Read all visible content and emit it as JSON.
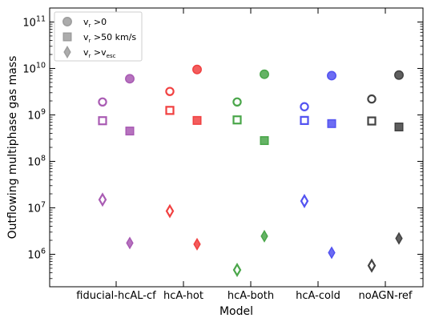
{
  "chart_data": {
    "type": "scatter",
    "title": "",
    "xlabel": "Model",
    "ylabel": "Outflowing multiphase gas mass",
    "yscale": "log",
    "ylim": [
      200000,
      200000000000
    ],
    "ytick_labels": [
      "10^6",
      "10^7",
      "10^8",
      "10^9",
      "10^10",
      "10^11"
    ],
    "ytick_values": [
      1000000,
      10000000,
      100000000,
      1000000000,
      10000000000,
      100000000000
    ],
    "categories": [
      "fiducial-hcAL-cf",
      "hcA-hot",
      "hcA-both",
      "hcA-cold",
      "noAGN-ref"
    ],
    "category_colors": [
      "#9a3ea6",
      "#ee2020",
      "#2a972a",
      "#3434ee",
      "#222222"
    ],
    "grid": false,
    "legend_position": "top-left",
    "legend": [
      {
        "marker": "circle",
        "label_main": "v",
        "label_sub": "r",
        "label_rest": " >0"
      },
      {
        "marker": "square",
        "label_main": "v",
        "label_sub": "r",
        "label_rest": " >50 km/s"
      },
      {
        "marker": "diamond",
        "label_main": "v",
        "label_sub": "r",
        "label_rest": " >v",
        "label_sub2": "esc"
      }
    ],
    "series": [
      {
        "marker": "circle",
        "variant": "open",
        "values": [
          1900000000,
          3200000000,
          1900000000,
          1500000000,
          2200000000
        ]
      },
      {
        "marker": "circle",
        "variant": "filled",
        "values": [
          6000000000,
          9500000000,
          7500000000,
          7000000000,
          7200000000
        ]
      },
      {
        "marker": "square",
        "variant": "open",
        "values": [
          750000000,
          1250000000,
          780000000,
          760000000,
          740000000
        ]
      },
      {
        "marker": "square",
        "variant": "filled",
        "values": [
          450000000,
          760000000,
          280000000,
          650000000,
          550000000
        ]
      },
      {
        "marker": "diamond",
        "variant": "open",
        "values": [
          15000000,
          8500000,
          460000,
          14000000,
          570000
        ]
      },
      {
        "marker": "diamond",
        "variant": "filled",
        "values": [
          1750000,
          1650000,
          2450000,
          1080000,
          2200000
        ]
      }
    ]
  }
}
